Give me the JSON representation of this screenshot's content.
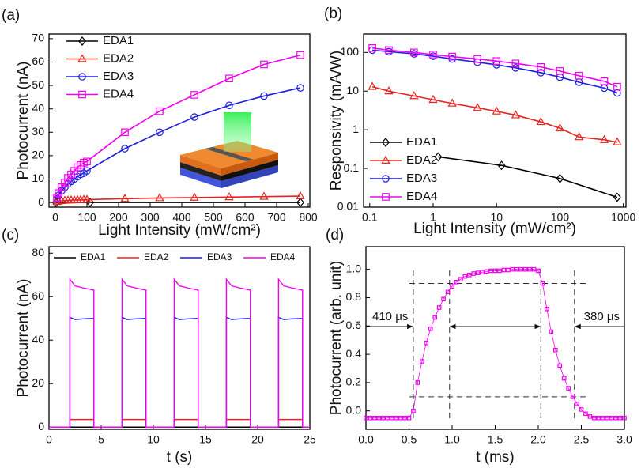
{
  "chart_data": [
    {
      "type": "line",
      "panel_label": "(a)",
      "x_label": "Light Intensity (mW/cm²)",
      "y_label": "Photocurrent (nA)",
      "xlim": [
        -20,
        805
      ],
      "ylim": [
        -2,
        72
      ],
      "xticks": [
        0,
        100,
        200,
        300,
        400,
        500,
        600,
        700,
        800
      ],
      "yticks": [
        0,
        10,
        20,
        30,
        40,
        50,
        60,
        70
      ],
      "legend": "upper left",
      "series": [
        {
          "name": "EDA1",
          "color": "#000000",
          "marker": "diamond",
          "x": [
            2,
            110,
            775
          ],
          "values": [
            0,
            0,
            0
          ]
        },
        {
          "name": "EDA2",
          "color": "#e8231f",
          "marker": "triangle",
          "x": [
            5,
            10,
            20,
            30,
            40,
            50,
            60,
            70,
            80,
            90,
            100,
            220,
            330,
            440,
            550,
            660,
            775
          ],
          "values": [
            0.3,
            0.5,
            0.7,
            0.8,
            0.9,
            1,
            1,
            1.1,
            1.1,
            1.2,
            1.2,
            1.6,
            1.9,
            2.1,
            2.3,
            2.5,
            2.7
          ]
        },
        {
          "name": "EDA3",
          "color": "#1f1fdf",
          "marker": "circle",
          "x": [
            5,
            10,
            20,
            30,
            40,
            50,
            60,
            70,
            80,
            90,
            100,
            220,
            330,
            440,
            550,
            660,
            775
          ],
          "values": [
            1.5,
            3,
            5,
            6.5,
            8,
            9,
            10,
            11,
            12,
            12.5,
            13.5,
            23,
            30,
            36.5,
            41.5,
            45.5,
            49
          ]
        },
        {
          "name": "EDA4",
          "color": "#f000f0",
          "marker": "square",
          "x": [
            5,
            10,
            20,
            30,
            40,
            50,
            60,
            70,
            80,
            90,
            100,
            220,
            330,
            440,
            550,
            660,
            775
          ],
          "values": [
            2,
            4,
            6.5,
            8.5,
            10.5,
            12,
            13.5,
            15,
            16,
            17,
            17.5,
            30,
            39,
            46,
            53,
            59,
            63
          ]
        }
      ]
    },
    {
      "type": "line",
      "panel_label": "(b)",
      "x_label": "Light Intensity (mW/cm²)",
      "y_label": "Responsivity (mA/W)",
      "xlog": true,
      "ylog": true,
      "xlim": [
        0.08,
        1100
      ],
      "ylim": [
        0.01,
        300
      ],
      "xticks": [
        0.1,
        1,
        10,
        100,
        1000
      ],
      "yticks": [
        0.01,
        0.1,
        1,
        10,
        100
      ],
      "legend": "lower left",
      "series": [
        {
          "name": "EDA1",
          "color": "#000000",
          "marker": "diamond",
          "x": [
            1.2,
            12,
            100,
            800
          ],
          "values": [
            0.2,
            0.12,
            0.055,
            0.018
          ]
        },
        {
          "name": "EDA2",
          "color": "#e8231f",
          "marker": "triangle",
          "x": [
            0.11,
            0.2,
            0.5,
            1,
            2,
            5,
            10,
            20,
            50,
            100,
            200,
            500,
            800
          ],
          "values": [
            13,
            10,
            7.5,
            6,
            4.8,
            3.7,
            3,
            2.4,
            1.6,
            1.1,
            0.65,
            0.55,
            0.48
          ]
        },
        {
          "name": "EDA3",
          "color": "#1f1fdf",
          "marker": "circle",
          "x": [
            0.11,
            0.2,
            0.5,
            1,
            2,
            5,
            10,
            20,
            50,
            100,
            200,
            500,
            800
          ],
          "values": [
            115,
            105,
            92,
            80,
            68,
            56,
            48,
            40,
            30,
            23,
            17,
            12,
            9
          ]
        },
        {
          "name": "EDA4",
          "color": "#f000f0",
          "marker": "square",
          "x": [
            0.11,
            0.2,
            0.5,
            1,
            2,
            5,
            10,
            20,
            50,
            100,
            200,
            500,
            800
          ],
          "values": [
            130,
            115,
            100,
            88,
            78,
            68,
            60,
            52,
            42,
            33,
            25,
            18,
            13
          ]
        }
      ]
    },
    {
      "type": "line",
      "panel_label": "(c)",
      "x_label": "t (s)",
      "y_label": "Photocurrent (nA)",
      "xlim": [
        0,
        25
      ],
      "ylim": [
        -1,
        83
      ],
      "xticks": [
        0,
        5,
        10,
        15,
        20,
        25
      ],
      "yticks": [
        0,
        20,
        40,
        60,
        80
      ],
      "legend": "upper center",
      "x": [
        0,
        2,
        2,
        2.5,
        3.3,
        4.3,
        4.3,
        7,
        7,
        7.5,
        8.3,
        9.3,
        9.3,
        12,
        12,
        12.5,
        13.3,
        14.3,
        14.3,
        17,
        17,
        17.5,
        18.3,
        19.3,
        19.3,
        22,
        22,
        22.5,
        23.3,
        24.3,
        24.3,
        25
      ],
      "series": [
        {
          "name": "EDA1",
          "color": "#000000",
          "values": [
            0,
            0,
            0,
            0,
            0,
            0,
            0,
            0,
            0,
            0,
            0,
            0,
            0,
            0,
            0,
            0,
            0,
            0,
            0,
            0,
            0,
            0,
            0,
            0,
            0,
            0,
            0,
            0,
            0,
            0,
            0,
            0
          ]
        },
        {
          "name": "EDA2",
          "color": "#e8231f",
          "values": [
            0,
            0,
            3.5,
            3.5,
            3.5,
            3.5,
            0,
            0,
            3.5,
            3.5,
            3.5,
            3.5,
            0,
            0,
            3.5,
            3.5,
            3.5,
            3.5,
            0,
            0,
            3.5,
            3.5,
            3.5,
            3.5,
            0,
            0,
            3.5,
            3.5,
            3.5,
            3.5,
            0,
            0
          ]
        },
        {
          "name": "EDA3",
          "color": "#1f1fdf",
          "values": [
            0,
            0,
            50.5,
            49.5,
            49.8,
            50,
            0,
            0,
            50.5,
            49.5,
            49.8,
            50,
            0,
            0,
            50.5,
            49.5,
            49.8,
            50,
            0,
            0,
            50.5,
            49.5,
            49.8,
            50,
            0,
            0,
            50.5,
            49.5,
            49.8,
            50,
            0,
            0
          ]
        },
        {
          "name": "EDA4",
          "color": "#f000f0",
          "values": [
            0,
            0,
            68,
            65,
            64,
            63,
            0,
            0,
            68,
            65,
            64,
            63,
            0,
            0,
            68,
            65,
            64,
            63,
            0,
            0,
            68,
            65,
            64,
            63,
            0,
            0,
            68,
            65,
            64,
            63,
            0,
            0
          ]
        }
      ]
    },
    {
      "type": "line",
      "panel_label": "(d)",
      "x_label": "t (ms)",
      "y_label": "Photocurrent (arb. unit)",
      "xlim": [
        0,
        3
      ],
      "ylim": [
        -0.13,
        1.16
      ],
      "xticks": [
        {
          "value": 0,
          "label": "0.0"
        },
        0.5,
        {
          "value": 1,
          "label": "1.0"
        },
        1.5,
        {
          "value": 2,
          "label": "2.0"
        },
        2.5,
        {
          "value": 3,
          "label": "3.0"
        }
      ],
      "yticks": [
        {
          "value": 0,
          "label": "0.0"
        },
        0.2,
        0.4,
        0.6,
        0.8,
        {
          "value": 1,
          "label": "1.0"
        }
      ],
      "hlines": [
        0.9,
        0.1
      ],
      "vlines": [
        0.55,
        0.97,
        2.03,
        2.42
      ],
      "annotations": [
        "410 μs",
        "380 μs"
      ],
      "x": [
        0,
        0.05,
        0.1,
        0.15,
        0.2,
        0.25,
        0.3,
        0.35,
        0.4,
        0.45,
        0.5,
        0.55,
        0.6,
        0.65,
        0.7,
        0.75,
        0.8,
        0.85,
        0.9,
        0.95,
        1,
        1.05,
        1.1,
        1.15,
        1.2,
        1.25,
        1.3,
        1.35,
        1.4,
        1.45,
        1.5,
        1.55,
        1.6,
        1.65,
        1.7,
        1.75,
        1.8,
        1.85,
        1.9,
        1.95,
        2,
        2.05,
        2.1,
        2.15,
        2.2,
        2.25,
        2.3,
        2.35,
        2.4,
        2.45,
        2.5,
        2.55,
        2.6,
        2.65,
        2.7,
        2.75,
        2.8,
        2.85,
        2.9,
        2.95,
        3
      ],
      "series": [
        {
          "color": "#f000f0",
          "marker": "square",
          "values": [
            -0.05,
            -0.05,
            -0.05,
            -0.05,
            -0.05,
            -0.05,
            -0.05,
            -0.05,
            -0.05,
            -0.05,
            -0.05,
            0,
            0.2,
            0.35,
            0.48,
            0.58,
            0.66,
            0.73,
            0.79,
            0.84,
            0.88,
            0.91,
            0.93,
            0.95,
            0.96,
            0.97,
            0.975,
            0.98,
            0.985,
            0.99,
            0.99,
            0.99,
            0.995,
            0.995,
            1,
            1,
            1,
            1,
            1,
            1,
            0.99,
            0.9,
            0.72,
            0.56,
            0.43,
            0.32,
            0.23,
            0.16,
            0.1,
            0.05,
            0.01,
            -0.02,
            -0.04,
            -0.05,
            -0.05,
            -0.05,
            -0.05,
            -0.05,
            -0.05,
            -0.05,
            -0.05
          ]
        }
      ]
    }
  ]
}
